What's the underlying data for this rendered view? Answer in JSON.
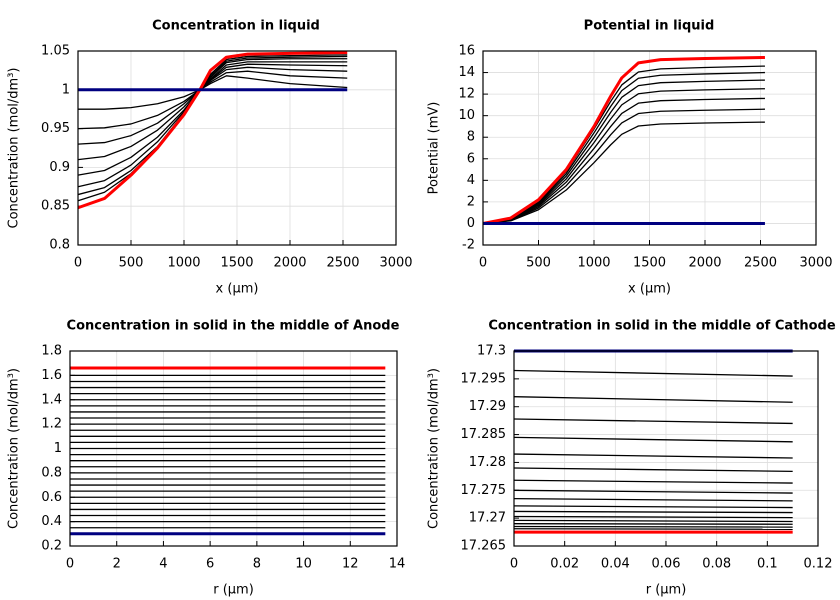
{
  "chart_data": [
    {
      "type": "line",
      "title": "Concentration in liquid",
      "xlabel": "x (µm)",
      "ylabel": "Concentration (mol/dm³)",
      "x": [
        0,
        250,
        500,
        750,
        1000,
        1150,
        1250,
        1400,
        1600,
        2000,
        2540
      ],
      "xlim": [
        0,
        3000
      ],
      "xticks": [
        0,
        500,
        1000,
        1500,
        2000,
        2500,
        3000
      ],
      "ylim": [
        0.8,
        1.05
      ],
      "yticks": [
        0.8,
        0.85,
        0.9,
        0.95,
        1,
        1.05
      ],
      "grid": true,
      "series": [
        {
          "color": "#000000",
          "values": [
            0.975,
            0.975,
            0.977,
            0.982,
            0.991,
            1.0,
            1.008,
            1.018,
            1.015,
            1.008,
            1.003
          ]
        },
        {
          "color": "#000000",
          "values": [
            0.95,
            0.951,
            0.956,
            0.967,
            0.985,
            1.0,
            1.01,
            1.022,
            1.024,
            1.018,
            1.015
          ]
        },
        {
          "color": "#000000",
          "values": [
            0.93,
            0.932,
            0.941,
            0.957,
            0.982,
            1.0,
            1.012,
            1.026,
            1.029,
            1.026,
            1.024
          ]
        },
        {
          "color": "#000000",
          "values": [
            0.91,
            0.914,
            0.927,
            0.948,
            0.978,
            1.0,
            1.013,
            1.029,
            1.033,
            1.032,
            1.031
          ]
        },
        {
          "color": "#000000",
          "values": [
            0.89,
            0.896,
            0.913,
            0.939,
            0.974,
            1.0,
            1.014,
            1.032,
            1.036,
            1.036,
            1.036
          ]
        },
        {
          "color": "#000000",
          "values": [
            0.875,
            0.883,
            0.903,
            0.933,
            0.972,
            1.0,
            1.016,
            1.035,
            1.039,
            1.04,
            1.04
          ]
        },
        {
          "color": "#000000",
          "values": [
            0.865,
            0.874,
            0.896,
            0.927,
            0.97,
            1.0,
            1.018,
            1.037,
            1.041,
            1.042,
            1.043
          ]
        },
        {
          "color": "#000000",
          "values": [
            0.857,
            0.868,
            0.892,
            0.926,
            0.97,
            1.0,
            1.02,
            1.039,
            1.043,
            1.044,
            1.045
          ]
        },
        {
          "color": "#ff0000",
          "values": [
            0.848,
            0.86,
            0.89,
            0.925,
            0.968,
            1.0,
            1.025,
            1.042,
            1.046,
            1.047,
            1.048
          ]
        },
        {
          "color": "#000080",
          "values": [
            1,
            1,
            1,
            1,
            1,
            1,
            1,
            1,
            1,
            1,
            1
          ]
        }
      ]
    },
    {
      "type": "line",
      "title": "Potential in liquid",
      "xlabel": "x (µm)",
      "ylabel": "Potential (mV)",
      "x": [
        0,
        250,
        500,
        750,
        1000,
        1150,
        1250,
        1400,
        1600,
        2000,
        2540
      ],
      "xlim": [
        0,
        3000
      ],
      "xticks": [
        0,
        500,
        1000,
        1500,
        2000,
        2500,
        3000
      ],
      "ylim": [
        -2,
        16
      ],
      "yticks": [
        -2,
        0,
        2,
        4,
        6,
        8,
        10,
        12,
        14,
        16
      ],
      "grid": true,
      "series": [
        {
          "color": "#000000",
          "values": [
            0,
            0.24,
            1.27,
            3.1,
            5.64,
            7.29,
            8.27,
            9.04,
            9.23,
            9.32,
            9.4
          ]
        },
        {
          "color": "#000000",
          "values": [
            0,
            0.27,
            1.43,
            3.5,
            6.36,
            8.22,
            9.33,
            10.2,
            10.41,
            10.5,
            10.6
          ]
        },
        {
          "color": "#000000",
          "values": [
            0,
            0.29,
            1.57,
            3.83,
            6.96,
            8.99,
            10.21,
            11.16,
            11.39,
            11.5,
            11.6
          ]
        },
        {
          "color": "#000000",
          "values": [
            0,
            0.31,
            1.69,
            4.13,
            7.5,
            9.69,
            11,
            12.03,
            12.28,
            12.39,
            12.5
          ]
        },
        {
          "color": "#000000",
          "values": [
            0,
            0.33,
            1.8,
            4.39,
            7.98,
            10.31,
            11.7,
            12.79,
            13.06,
            13.18,
            13.3
          ]
        },
        {
          "color": "#000000",
          "values": [
            0,
            0.35,
            1.89,
            4.62,
            8.4,
            10.85,
            12.32,
            13.47,
            13.75,
            13.87,
            14
          ]
        },
        {
          "color": "#000000",
          "values": [
            0,
            0.37,
            1.97,
            4.82,
            8.76,
            11.32,
            12.85,
            14.05,
            14.34,
            14.47,
            14.6
          ]
        },
        {
          "color": "#ff0000",
          "values": [
            0,
            0.5,
            2.2,
            5,
            9,
            11.8,
            13.5,
            14.9,
            15.2,
            15.3,
            15.4
          ]
        },
        {
          "color": "#000080",
          "values": [
            0,
            0,
            0,
            0,
            0,
            0,
            0,
            0,
            0,
            0,
            0
          ]
        }
      ]
    },
    {
      "type": "line",
      "title": "Concentration in solid in the middle of Anode",
      "xlabel": "r (µm)",
      "ylabel": "Concentration (mol/dm³)",
      "x": [
        0,
        13.5
      ],
      "xlim": [
        0,
        14
      ],
      "xticks": [
        0,
        2,
        4,
        6,
        8,
        10,
        12,
        14
      ],
      "ylim": [
        0.2,
        1.8
      ],
      "yticks": [
        0.2,
        0.4,
        0.6,
        0.8,
        1,
        1.2,
        1.4,
        1.6,
        1.8
      ],
      "grid": true,
      "series": [
        {
          "color": "#000000",
          "values": [
            0.35,
            0.35
          ]
        },
        {
          "color": "#000000",
          "values": [
            0.4,
            0.4
          ]
        },
        {
          "color": "#000000",
          "values": [
            0.45,
            0.45
          ]
        },
        {
          "color": "#000000",
          "values": [
            0.5,
            0.5
          ]
        },
        {
          "color": "#000000",
          "values": [
            0.55,
            0.55
          ]
        },
        {
          "color": "#000000",
          "values": [
            0.6,
            0.6
          ]
        },
        {
          "color": "#000000",
          "values": [
            0.65,
            0.65
          ]
        },
        {
          "color": "#000000",
          "values": [
            0.7,
            0.7
          ]
        },
        {
          "color": "#000000",
          "values": [
            0.75,
            0.75
          ]
        },
        {
          "color": "#000000",
          "values": [
            0.8,
            0.8
          ]
        },
        {
          "color": "#000000",
          "values": [
            0.85,
            0.85
          ]
        },
        {
          "color": "#000000",
          "values": [
            0.9,
            0.9
          ]
        },
        {
          "color": "#000000",
          "values": [
            0.95,
            0.95
          ]
        },
        {
          "color": "#000000",
          "values": [
            1.0,
            1.0
          ]
        },
        {
          "color": "#000000",
          "values": [
            1.05,
            1.05
          ]
        },
        {
          "color": "#000000",
          "values": [
            1.1,
            1.1
          ]
        },
        {
          "color": "#000000",
          "values": [
            1.15,
            1.15
          ]
        },
        {
          "color": "#000000",
          "values": [
            1.2,
            1.2
          ]
        },
        {
          "color": "#000000",
          "values": [
            1.25,
            1.25
          ]
        },
        {
          "color": "#000000",
          "values": [
            1.3,
            1.3
          ]
        },
        {
          "color": "#000000",
          "values": [
            1.35,
            1.35
          ]
        },
        {
          "color": "#000000",
          "values": [
            1.4,
            1.4
          ]
        },
        {
          "color": "#000000",
          "values": [
            1.45,
            1.45
          ]
        },
        {
          "color": "#000000",
          "values": [
            1.5,
            1.5
          ]
        },
        {
          "color": "#000000",
          "values": [
            1.55,
            1.55
          ]
        },
        {
          "color": "#000000",
          "values": [
            1.6,
            1.6
          ]
        },
        {
          "color": "#ff0000",
          "values": [
            1.66,
            1.66
          ]
        },
        {
          "color": "#000080",
          "values": [
            0.3,
            0.3
          ]
        }
      ]
    },
    {
      "type": "line",
      "title": "Concentration in solid in the middle of Cathode",
      "xlabel": "r (µm)",
      "ylabel": "Concentration (mol/dm³)",
      "x": [
        0,
        0.11
      ],
      "xlim": [
        0,
        0.12
      ],
      "xticks": [
        0,
        0.02,
        0.04,
        0.06,
        0.08,
        0.1,
        0.12
      ],
      "ylim": [
        17.265,
        17.3
      ],
      "yticks": [
        17.265,
        17.27,
        17.275,
        17.28,
        17.285,
        17.29,
        17.295,
        17.3
      ],
      "grid": true,
      "series": [
        {
          "color": "#000000",
          "values": [
            17.2965,
            17.2955
          ]
        },
        {
          "color": "#000000",
          "values": [
            17.2918,
            17.2908
          ]
        },
        {
          "color": "#000000",
          "values": [
            17.2878,
            17.287
          ]
        },
        {
          "color": "#000000",
          "values": [
            17.2845,
            17.2837
          ]
        },
        {
          "color": "#000000",
          "values": [
            17.2815,
            17.2808
          ]
        },
        {
          "color": "#000000",
          "values": [
            17.279,
            17.2784
          ]
        },
        {
          "color": "#000000",
          "values": [
            17.2768,
            17.2763
          ]
        },
        {
          "color": "#000000",
          "values": [
            17.275,
            17.2745
          ]
        },
        {
          "color": "#000000",
          "values": [
            17.2735,
            17.2731
          ]
        },
        {
          "color": "#000000",
          "values": [
            17.2722,
            17.2719
          ]
        },
        {
          "color": "#000000",
          "values": [
            17.2712,
            17.271
          ]
        },
        {
          "color": "#000000",
          "values": [
            17.2703,
            17.2701
          ]
        },
        {
          "color": "#000000",
          "values": [
            17.2696,
            17.2694
          ]
        },
        {
          "color": "#000000",
          "values": [
            17.269,
            17.2689
          ]
        },
        {
          "color": "#000000",
          "values": [
            17.2685,
            17.2684
          ]
        },
        {
          "color": "#000000",
          "values": [
            17.2681,
            17.268
          ]
        },
        {
          "color": "#ff0000",
          "values": [
            17.2675,
            17.2675
          ]
        },
        {
          "color": "#000080",
          "values": [
            17.3,
            17.3
          ]
        }
      ]
    }
  ]
}
